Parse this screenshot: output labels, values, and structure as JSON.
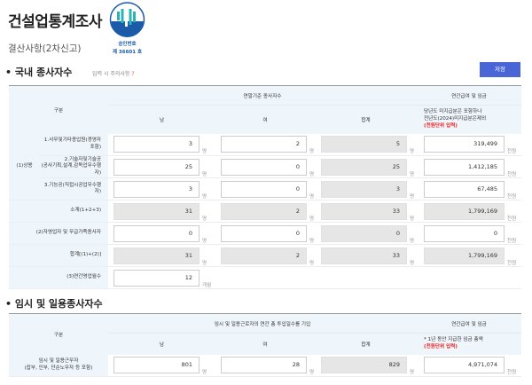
{
  "header": {
    "title": "건설업통계조사",
    "subtitle": "결산사항(2차신고)",
    "logo": {
      "top_text": "국가통계",
      "ring_text": "NATIONAL STATISTICS",
      "line1": "승인번호",
      "line2": "제 36601 호",
      "color": "#1a5aa8",
      "accent": "#2bb3b8"
    }
  },
  "section1": {
    "title": "국내 종사자수",
    "note": "입력 시 주의사항",
    "note_icon": "question-icon",
    "note_mark": "?",
    "save_label": "저장",
    "headers": {
      "category": "구분",
      "group": "연말기준 종사자수",
      "male": "남",
      "female": "여",
      "total": "합계",
      "pay": "연간급여 및 임금",
      "pay_note1": "당년도 미지급분은 포함하나",
      "pay_note2": "전년도(2024)미지급분은제외",
      "pay_note3": "(천원단위 입력)"
    },
    "group_label": "(1)상용",
    "unit_person": "명",
    "unit_money": "천원",
    "unit_month": "개월",
    "rows": [
      {
        "label": "1.사무및기타종업원(경영자포함)",
        "male": "3",
        "female": "2",
        "total": "5",
        "pay": "319,499"
      },
      {
        "label": "2.기술자및기술공",
        "label2": "(공사기획,설계,감독업무수행자)",
        "male": "25",
        "female": "0",
        "total": "25",
        "pay": "1,412,185"
      },
      {
        "label": "3.기능공(직접시공업무수행자)",
        "male": "3",
        "female": "0",
        "total": "3",
        "pay": "67,485"
      },
      {
        "label": "소계(1+2+3)",
        "male": "31",
        "female": "2",
        "total": "33",
        "pay": "1,799,169"
      },
      {
        "label": "(2)자영업자 및 무급가족종사자",
        "male": "0",
        "female": "0",
        "total": "0",
        "pay": "0"
      },
      {
        "label": "합계[(1)+(2)]",
        "male": "31",
        "female": "2",
        "total": "33",
        "pay": "1,799,169"
      }
    ],
    "months": {
      "label": "(3)연간영업월수",
      "value": "12"
    }
  },
  "section2": {
    "title": "임시 및 일용종사자수",
    "headers": {
      "category": "구분",
      "group": "임시 및 일용근로자의 연간 총 투입일수를 기입",
      "male": "남",
      "female": "여",
      "total": "합계",
      "pay": "연간급여 및 임금",
      "pay_note1": "* 1년 동안 지급한 임금 총액",
      "pay_note2": "(천원단위 입력)"
    },
    "row": {
      "label": "임시 및 일용근무자",
      "label2": "(잡부, 인부, 단순노무자 등 포함)",
      "male": "801",
      "female": "28",
      "total": "829",
      "pay": "4,971,074"
    }
  }
}
